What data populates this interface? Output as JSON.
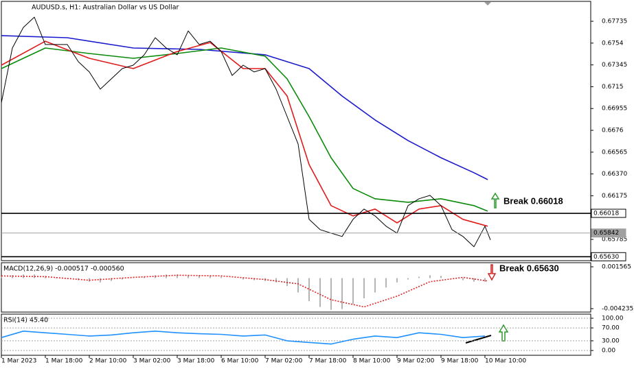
{
  "chart_data": [
    {
      "type": "line",
      "title": "AUDUSD.s, H1:  Australian Dollar vs US Dollar",
      "xlim": [
        0,
        214.5
      ],
      "ylim": [
        0.65595,
        0.67913
      ],
      "yticks": [
        0.67735,
        0.6754,
        0.67345,
        0.6715,
        0.66955,
        0.6676,
        0.66565,
        {
          "value": 0.6637,
          "label": "0.66370"
        },
        0.66175,
        0.65785
      ],
      "levels": [
        {
          "value": 0.66018,
          "label": "0.66018",
          "color": "#000000"
        },
        {
          "value": 0.65842,
          "label": "0.65842",
          "color": "#a0a0a0"
        },
        {
          "value": 0.6563,
          "label": "0.65630",
          "color": "#000000"
        }
      ],
      "annotations": [
        "Break 0.66018",
        "Break 0.65630"
      ],
      "series": [
        {
          "style": "line",
          "color": "#1a1acc",
          "x": [
            0,
            24,
            48,
            72,
            96,
            112,
            124,
            136,
            148,
            160,
            172,
            177
          ],
          "values": [
            0.67607,
            0.67588,
            0.67496,
            0.67484,
            0.67435,
            0.67312,
            0.67067,
            0.66853,
            0.66669,
            0.66515,
            0.66381,
            0.66319
          ]
        },
        {
          "style": "line",
          "color": "#0a8a0a",
          "x": [
            0,
            16,
            32,
            48,
            64,
            80,
            96,
            104,
            112,
            120,
            128,
            136,
            148,
            160,
            172,
            177
          ],
          "values": [
            0.67312,
            0.67496,
            0.67447,
            0.67404,
            0.67447,
            0.67496,
            0.67423,
            0.6722,
            0.66883,
            0.66515,
            0.6624,
            0.66148,
            0.66117,
            0.66148,
            0.66087,
            0.66037
          ]
        },
        {
          "style": "line",
          "color": "#e01a1a",
          "x": [
            0,
            16,
            32,
            48,
            64,
            76,
            88,
            96,
            104,
            112,
            120,
            128,
            136,
            144,
            152,
            160,
            168,
            177
          ],
          "values": [
            0.67343,
            0.67557,
            0.67404,
            0.67312,
            0.67465,
            0.67545,
            0.67312,
            0.67312,
            0.67067,
            0.66454,
            0.66087,
            0.65995,
            0.66056,
            0.65933,
            0.66056,
            0.66087,
            0.65964,
            0.65903
          ]
        },
        {
          "style": "line",
          "color": "#000000",
          "x": [
            0,
            4,
            8,
            12,
            16,
            20,
            24,
            28,
            32,
            36,
            40,
            44,
            48,
            52,
            56,
            60,
            64,
            68,
            72,
            76,
            80,
            84,
            88,
            92,
            96,
            100,
            104,
            108,
            112,
            116,
            120,
            124,
            128,
            132,
            136,
            140,
            144,
            148,
            152,
            156,
            160,
            164,
            168,
            172,
            176,
            178
          ],
          "values": [
            0.67006,
            0.67496,
            0.6768,
            0.67772,
            0.67527,
            0.67527,
            0.67527,
            0.67374,
            0.67282,
            0.67128,
            0.6722,
            0.67312,
            0.67343,
            0.67435,
            0.67588,
            0.67496,
            0.67435,
            0.67649,
            0.67527,
            0.67557,
            0.67465,
            0.67251,
            0.67343,
            0.67282,
            0.67312,
            0.67128,
            0.66883,
            0.66638,
            0.65964,
            0.65872,
            0.65841,
            0.65811,
            0.65964,
            0.66056,
            0.65995,
            0.65903,
            0.65841,
            0.66087,
            0.66148,
            0.66178,
            0.66087,
            0.65872,
            0.65811,
            0.65719,
            0.65903,
            0.6578
          ]
        }
      ]
    },
    {
      "type": "macd",
      "title": "MACD(12,26,9) -0.000517 -0.000560",
      "xlim": [
        0,
        214.5
      ],
      "ylim": [
        -0.004711,
        0.002136
      ],
      "yticks": [
        0.001565,
        -0.004235
      ],
      "series": [
        {
          "style": "histogram",
          "color": "#b4b4b4",
          "x": [
            0,
            4,
            8,
            12,
            16,
            20,
            24,
            28,
            32,
            36,
            40,
            44,
            48,
            52,
            56,
            60,
            64,
            68,
            72,
            76,
            80,
            84,
            88,
            92,
            96,
            100,
            104,
            108,
            112,
            116,
            120,
            124,
            128,
            132,
            136,
            140,
            144,
            148,
            152,
            156,
            160,
            164,
            168,
            172,
            176
          ],
          "values": [
            0.0002,
            0.0004,
            0.0005,
            0.0005,
            0.0003,
            0.0001,
            -0.0001,
            -0.0003,
            -0.0005,
            -0.0006,
            -0.0004,
            -0.0002,
            0,
            0.0002,
            0.0004,
            0.0005,
            0.0005,
            0.0004,
            0.0004,
            0.0003,
            0.0002,
            0,
            -0.0002,
            -0.0003,
            -0.0004,
            -0.0006,
            -0.0011,
            -0.002,
            -0.0032,
            -0.004,
            -0.0044,
            -0.0043,
            -0.0036,
            -0.0028,
            -0.002,
            -0.0013,
            -0.0006,
            -0.0002,
            0.0002,
            0.0004,
            0.0003,
            0,
            -0.0003,
            -0.0005,
            -0.0005
          ]
        },
        {
          "style": "dotted",
          "color": "#e02020",
          "x": [
            0,
            16,
            32,
            48,
            64,
            80,
            96,
            108,
            120,
            132,
            144,
            156,
            168,
            177
          ],
          "values": [
            0.0003,
            0.0002,
            -0.0003,
            0.0001,
            0.0004,
            0.0003,
            -0.0002,
            -0.0008,
            -0.003,
            -0.004,
            -0.0025,
            -0.0005,
            0.0001,
            -0.0004
          ]
        }
      ]
    },
    {
      "type": "line",
      "title": "RSI(14) 45.40",
      "grid": true,
      "xlim": [
        0,
        214.5
      ],
      "ylim": [
        -14.9,
        112.8
      ],
      "yticks": [
        {
          "value": 100,
          "label": "100.00"
        },
        {
          "value": 70,
          "label": "70.00"
        },
        {
          "value": 30,
          "label": "30.00"
        },
        {
          "value": 0,
          "label": "0.00"
        }
      ],
      "xticks": [
        {
          "value": 0,
          "label": "1 Mar 2023"
        },
        {
          "value": 16,
          "label": "1 Mar 18:00"
        },
        {
          "value": 32,
          "label": "2 Mar 10:00"
        },
        {
          "value": 48,
          "label": "3 Mar 02:00"
        },
        {
          "value": 64,
          "label": "3 Mar 18:00"
        },
        {
          "value": 80,
          "label": "6 Mar 10:00"
        },
        {
          "value": 96,
          "label": "7 Mar 02:00"
        },
        {
          "value": 112,
          "label": "7 Mar 18:00"
        },
        {
          "value": 128,
          "label": "8 Mar 10:00"
        },
        {
          "value": 144,
          "label": "9 Mar 02:00"
        },
        {
          "value": 160,
          "label": "9 Mar 18:00"
        },
        {
          "value": 176,
          "label": "10 Mar 10:00"
        }
      ],
      "series": [
        {
          "style": "line",
          "color": "#1e90ff",
          "x": [
            0,
            8,
            16,
            24,
            32,
            40,
            48,
            56,
            64,
            72,
            80,
            88,
            96,
            104,
            112,
            120,
            128,
            136,
            144,
            152,
            160,
            168,
            176
          ],
          "values": [
            40,
            60,
            55,
            50,
            45,
            48,
            55,
            60,
            55,
            52,
            50,
            45,
            48,
            30,
            25,
            20,
            35,
            45,
            40,
            55,
            50,
            40,
            45
          ]
        }
      ]
    }
  ]
}
